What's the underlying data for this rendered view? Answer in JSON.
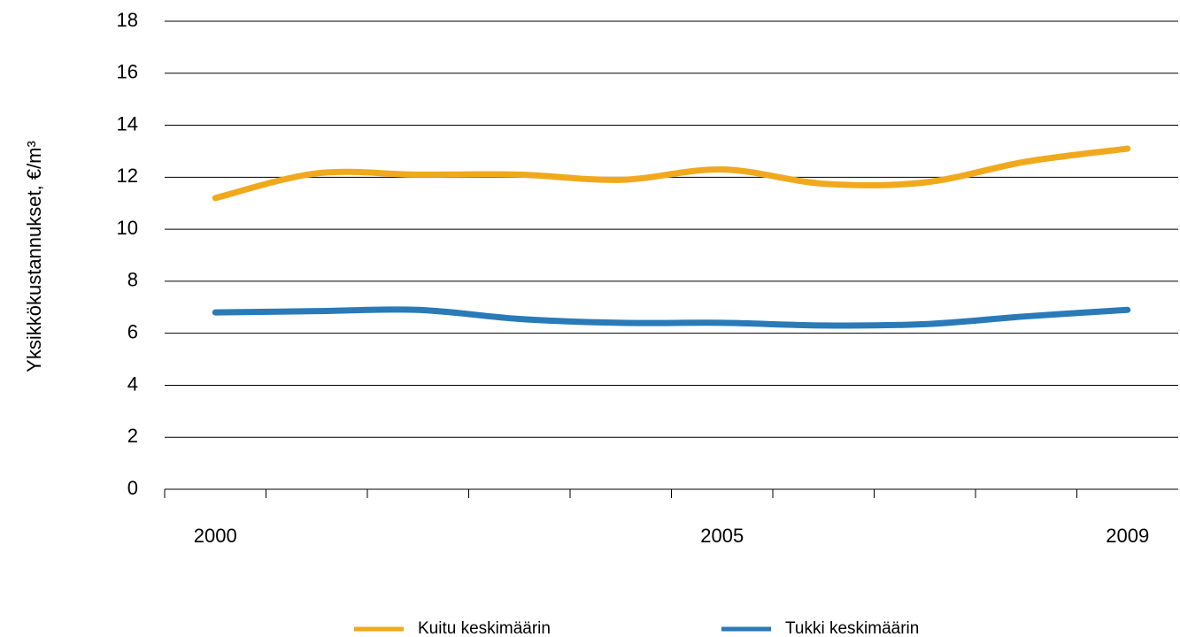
{
  "chart_data": {
    "type": "line",
    "y_label": "Yksikkökustannukset,  €/m³",
    "categories": [
      "2000",
      null,
      null,
      null,
      null,
      "2005",
      null,
      null,
      null,
      "2009"
    ],
    "series": [
      {
        "name": "Kuitu keskimäärin",
        "color": "#f0a91c",
        "values": [
          11.2,
          12.15,
          12.1,
          12.1,
          11.9,
          12.3,
          11.75,
          11.8,
          12.6,
          13.1
        ]
      },
      {
        "name": "Tukki keskimäärin",
        "color": "#2a7ab8",
        "values": [
          6.8,
          6.85,
          6.9,
          6.55,
          6.4,
          6.4,
          6.3,
          6.35,
          6.65,
          6.9
        ]
      }
    ],
    "ylim": [
      0,
      18
    ],
    "yticks": [
      0,
      2,
      4,
      6,
      8,
      10,
      12,
      14,
      16,
      18
    ],
    "grid": true,
    "legend": "bottom"
  }
}
